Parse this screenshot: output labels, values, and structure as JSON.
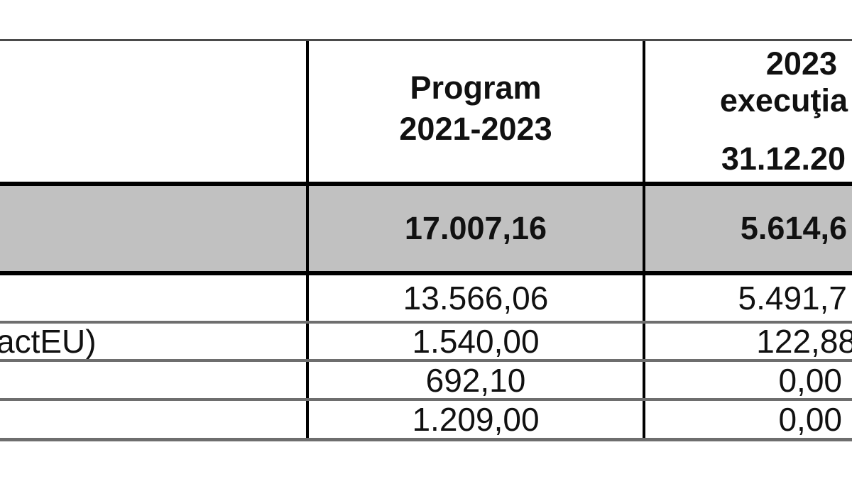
{
  "table": {
    "header": {
      "label": "",
      "program_line1": "Program",
      "program_line2": "2021-2023",
      "executie_line1": "2023",
      "executie_line2": "execuţia",
      "executie_line3": "31.12.20"
    },
    "total_row": {
      "label": "",
      "program": "17.007,16",
      "executie": "5.614,6"
    },
    "rows": [
      {
        "label": "",
        "program": "13.566,06",
        "executie": "5.491,7"
      },
      {
        "label": "actEU)",
        "program": "1.540,00",
        "executie": "122,88"
      },
      {
        "label": "",
        "program": "692,10",
        "executie": "0,00"
      },
      {
        "label": "",
        "program": "1.209,00",
        "executie": "0,00"
      }
    ],
    "colors": {
      "total_row_bg": "#c1c1c1",
      "heavy_border": "#000000",
      "light_border": "#6e6e6e",
      "top_border": "#4a4a4a",
      "text": "#111111",
      "page_bg": "#ffffff"
    }
  }
}
